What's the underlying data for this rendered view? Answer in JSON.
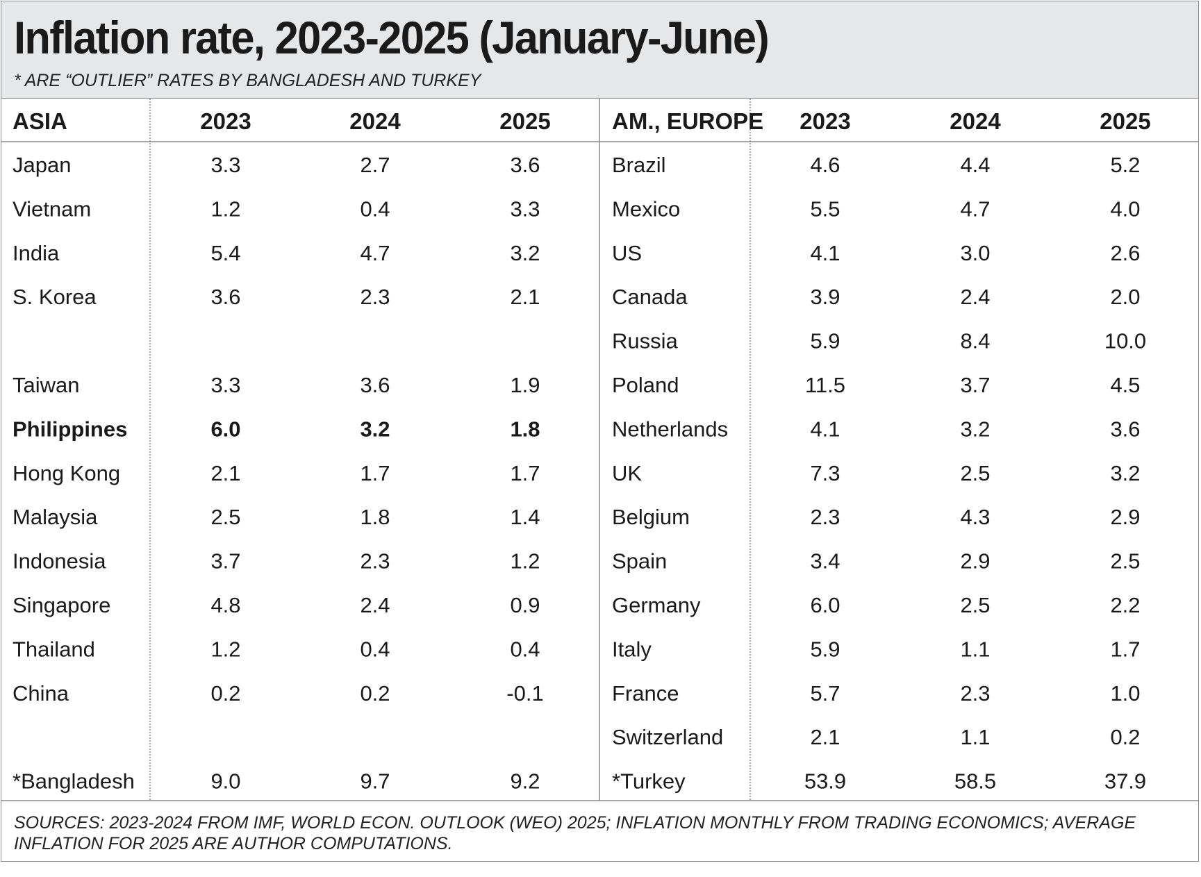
{
  "title": "Inflation rate, 2023-2025 (January-June)",
  "subtitle": "* ARE “OUTLIER” RATES BY BANGLADESH AND TURKEY",
  "footer": "SOURCES: 2023-2024 FROM IMF, WORLD ECON. OUTLOOK (WEO) 2025; INFLATION MONTHLY FROM TRADING ECONOMICS; AVERAGE INFLATION FOR 2025 ARE AUTHOR COMPUTATIONS.",
  "colors": {
    "header_bg": "#e6e7e9",
    "border": "#8c8c8c",
    "text": "#1a1a1a"
  },
  "chart_data": {
    "type": "table",
    "highlighted_row": "Philippines",
    "groups": [
      {
        "name": "ASIA",
        "columns": [
          "2023",
          "2024",
          "2025"
        ],
        "rows": [
          {
            "country": "Japan",
            "values": [
              "3.3",
              "2.7",
              "3.6"
            ]
          },
          {
            "country": "Vietnam",
            "values": [
              "1.2",
              "0.4",
              "3.3"
            ]
          },
          {
            "country": "India",
            "values": [
              "5.4",
              "4.7",
              "3.2"
            ]
          },
          {
            "country": "S. Korea",
            "values": [
              "3.6",
              "2.3",
              "2.1"
            ]
          },
          {
            "country": "",
            "values": [
              "",
              "",
              ""
            ]
          },
          {
            "country": "Taiwan",
            "values": [
              "3.3",
              "3.6",
              "1.9"
            ]
          },
          {
            "country": "Philippines",
            "values": [
              "6.0",
              "3.2",
              "1.8"
            ],
            "bold": true
          },
          {
            "country": "Hong Kong",
            "values": [
              "2.1",
              "1.7",
              "1.7"
            ]
          },
          {
            "country": "Malaysia",
            "values": [
              "2.5",
              "1.8",
              "1.4"
            ]
          },
          {
            "country": "Indonesia",
            "values": [
              "3.7",
              "2.3",
              "1.2"
            ]
          },
          {
            "country": "Singapore",
            "values": [
              "4.8",
              "2.4",
              "0.9"
            ]
          },
          {
            "country": "Thailand",
            "values": [
              "1.2",
              "0.4",
              "0.4"
            ]
          },
          {
            "country": "China",
            "values": [
              "0.2",
              "0.2",
              "-0.1"
            ]
          },
          {
            "country": "",
            "values": [
              "",
              "",
              ""
            ]
          },
          {
            "country": "*Bangladesh",
            "values": [
              "9.0",
              "9.7",
              "9.2"
            ]
          }
        ]
      },
      {
        "name": "AM., EUROPE",
        "columns": [
          "2023",
          "2024",
          "2025"
        ],
        "rows": [
          {
            "country": "Brazil",
            "values": [
              "4.6",
              "4.4",
              "5.2"
            ]
          },
          {
            "country": "Mexico",
            "values": [
              "5.5",
              "4.7",
              "4.0"
            ]
          },
          {
            "country": "US",
            "values": [
              "4.1",
              "3.0",
              "2.6"
            ]
          },
          {
            "country": "Canada",
            "values": [
              "3.9",
              "2.4",
              "2.0"
            ]
          },
          {
            "country": "Russia",
            "values": [
              "5.9",
              "8.4",
              "10.0"
            ]
          },
          {
            "country": "Poland",
            "values": [
              "11.5",
              "3.7",
              "4.5"
            ]
          },
          {
            "country": "Netherlands",
            "values": [
              "4.1",
              "3.2",
              "3.6"
            ]
          },
          {
            "country": "UK",
            "values": [
              "7.3",
              "2.5",
              "3.2"
            ]
          },
          {
            "country": "Belgium",
            "values": [
              "2.3",
              "4.3",
              "2.9"
            ]
          },
          {
            "country": "Spain",
            "values": [
              "3.4",
              "2.9",
              "2.5"
            ]
          },
          {
            "country": "Germany",
            "values": [
              "6.0",
              "2.5",
              "2.2"
            ]
          },
          {
            "country": "Italy",
            "values": [
              "5.9",
              "1.1",
              "1.7"
            ]
          },
          {
            "country": "France",
            "values": [
              "5.7",
              "2.3",
              "1.0"
            ]
          },
          {
            "country": "Switzerland",
            "values": [
              "2.1",
              "1.1",
              "0.2"
            ]
          },
          {
            "country": "*Turkey",
            "values": [
              "53.9",
              "58.5",
              "37.9"
            ]
          }
        ]
      }
    ]
  }
}
